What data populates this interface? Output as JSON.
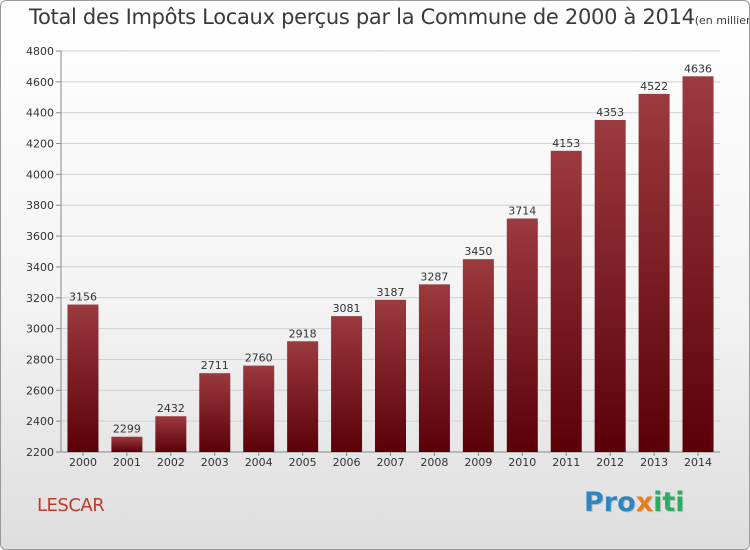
{
  "title": "Total des Impôts Locaux perçus par la Commune de 2000 à 2014",
  "unit_note": "(en milliers d'€)",
  "commune": "LESCAR",
  "brand": {
    "letters": [
      "P",
      "r",
      "o",
      "x",
      "i",
      "t",
      "i"
    ],
    "colors": [
      "#2e86c1",
      "#2e86c1",
      "#2e86c1",
      "#e67e22",
      "#27ae60",
      "#27ae60",
      "#27ae60"
    ]
  },
  "colors": {
    "bar_light": "#9b3a3f",
    "bar_dark": "#5c0008",
    "title": "#3a3a3a",
    "commune": "#c0392b"
  },
  "chart_data": {
    "type": "bar",
    "title": "Total des Impôts Locaux perçus par la Commune de 2000 à 2014",
    "xlabel": "",
    "ylabel": "",
    "categories": [
      "2000",
      "2001",
      "2002",
      "2003",
      "2004",
      "2005",
      "2006",
      "2007",
      "2008",
      "2009",
      "2010",
      "2011",
      "2012",
      "2013",
      "2014"
    ],
    "values": [
      3156,
      2299,
      2432,
      2711,
      2760,
      2918,
      3081,
      3187,
      3287,
      3450,
      3714,
      4153,
      4353,
      4522,
      4636
    ],
    "ylim": [
      2200,
      4800
    ],
    "yticks": [
      2200,
      2400,
      2600,
      2800,
      3000,
      3200,
      3400,
      3600,
      3800,
      4000,
      4200,
      4400,
      4600,
      4800
    ],
    "grid": true,
    "data_labels": true
  }
}
